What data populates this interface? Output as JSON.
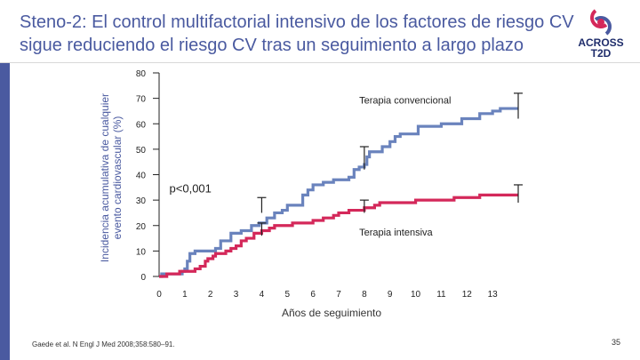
{
  "slide": {
    "title_line1": "Steno-2: El control multifactorial intensivo de los factores de riesgo CV",
    "title_line2": "sigue reduciendo el riesgo CV tras un seguimiento a largo plazo",
    "logo_line1": "ACROSS",
    "logo_line2": "T2D",
    "citation": "Gaede et al. N Engl J Med 2008;358:580–91.",
    "page_number": "35"
  },
  "colors": {
    "accent": "#4a5aa0",
    "conventional": "#6a83bd",
    "intensive": "#d4285a"
  },
  "chart_data": {
    "type": "line",
    "title": "",
    "xlabel": "Años de seguimiento",
    "ylabel_line1": "Incidencia acumulativa de cualquier",
    "ylabel_line2": "evento cardiovascular (%)",
    "x_ticks": [
      "0",
      "1",
      "2",
      "3",
      "4",
      "5",
      "6",
      "7",
      "8",
      "9",
      "10",
      "11",
      "12",
      "13"
    ],
    "y_ticks": [
      "0",
      "10",
      "20",
      "30",
      "40",
      "50",
      "60",
      "70",
      "80"
    ],
    "xlim": [
      0,
      14
    ],
    "ylim": [
      0,
      80
    ],
    "annotation": "p<0,001",
    "series": [
      {
        "name": "Terapia convencional",
        "color": "#6a83bd",
        "step_points": [
          [
            0,
            0
          ],
          [
            0.1,
            1
          ],
          [
            0.9,
            2
          ],
          [
            1.0,
            3
          ],
          [
            1.1,
            6
          ],
          [
            1.2,
            9
          ],
          [
            1.4,
            10
          ],
          [
            2.2,
            11
          ],
          [
            2.4,
            14
          ],
          [
            2.8,
            17
          ],
          [
            3.2,
            18
          ],
          [
            3.6,
            20
          ],
          [
            3.9,
            21
          ],
          [
            4.2,
            23
          ],
          [
            4.5,
            25
          ],
          [
            4.8,
            26
          ],
          [
            5.0,
            28
          ],
          [
            5.6,
            32
          ],
          [
            5.8,
            34
          ],
          [
            6.0,
            36
          ],
          [
            6.4,
            37
          ],
          [
            6.8,
            38
          ],
          [
            7.4,
            39
          ],
          [
            7.6,
            42
          ],
          [
            7.8,
            43
          ],
          [
            8.0,
            44
          ],
          [
            8.1,
            47
          ],
          [
            8.2,
            49
          ],
          [
            8.7,
            51
          ],
          [
            9.0,
            53
          ],
          [
            9.2,
            55
          ],
          [
            9.4,
            56
          ],
          [
            10.1,
            59
          ],
          [
            11.0,
            60
          ],
          [
            11.8,
            62
          ],
          [
            12.5,
            64
          ],
          [
            13.0,
            65
          ],
          [
            13.3,
            66
          ],
          [
            14.0,
            66
          ]
        ],
        "error_bars": [
          [
            4.0,
            25,
            31
          ],
          [
            8.0,
            42,
            51
          ],
          [
            14.0,
            62,
            72
          ]
        ]
      },
      {
        "name": "Terapia intensiva",
        "color": "#d4285a",
        "step_points": [
          [
            0,
            0
          ],
          [
            0.3,
            1
          ],
          [
            0.8,
            2
          ],
          [
            1.4,
            3
          ],
          [
            1.6,
            4
          ],
          [
            1.8,
            6
          ],
          [
            1.9,
            7
          ],
          [
            2.1,
            8
          ],
          [
            2.2,
            9
          ],
          [
            2.6,
            10
          ],
          [
            2.8,
            11
          ],
          [
            3.0,
            12
          ],
          [
            3.2,
            14
          ],
          [
            3.4,
            15
          ],
          [
            3.7,
            17
          ],
          [
            4.0,
            18
          ],
          [
            4.3,
            19
          ],
          [
            4.5,
            20
          ],
          [
            5.1,
            20
          ],
          [
            5.2,
            21
          ],
          [
            6.0,
            22
          ],
          [
            6.4,
            23
          ],
          [
            6.8,
            24
          ],
          [
            7.0,
            25
          ],
          [
            7.4,
            26
          ],
          [
            8.0,
            27
          ],
          [
            8.4,
            28
          ],
          [
            8.6,
            29
          ],
          [
            10.0,
            30
          ],
          [
            11.5,
            31
          ],
          [
            12.5,
            32
          ],
          [
            14.0,
            32
          ]
        ],
        "error_bars": [
          [
            4.0,
            16,
            21
          ],
          [
            8.0,
            25,
            30
          ],
          [
            14.0,
            29,
            36
          ]
        ]
      }
    ],
    "series_labels": [
      {
        "series": 0,
        "x": 7.8,
        "y": 68
      },
      {
        "series": 1,
        "x": 7.8,
        "y": 16
      }
    ],
    "annotation_position": {
      "x": 0.4,
      "y": 33
    }
  }
}
